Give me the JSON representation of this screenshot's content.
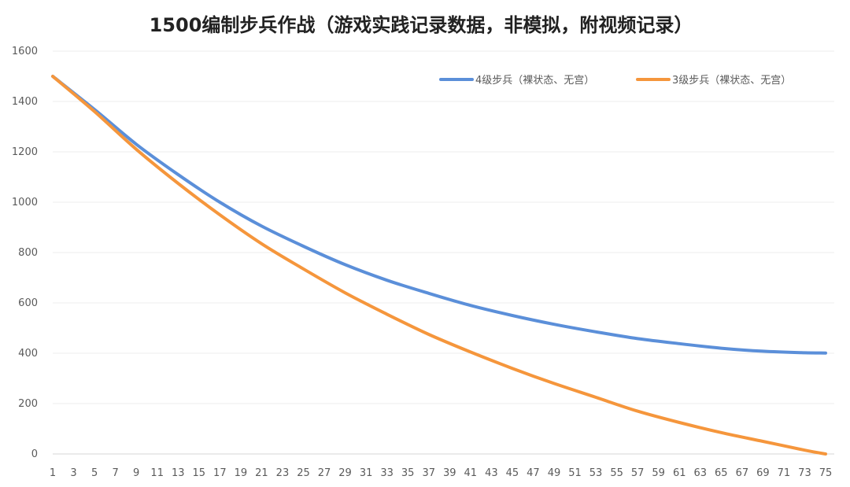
{
  "chart_data": {
    "type": "line",
    "title": "1500编制步兵作战（游戏实践记录数据，非模拟，附视频记录）",
    "xlabel": "",
    "ylabel": "",
    "ylim": [
      0,
      1600
    ],
    "y_ticks": [
      0,
      200,
      400,
      600,
      800,
      1000,
      1200,
      1400,
      1600
    ],
    "x_range": [
      1,
      75
    ],
    "x_ticks": [
      1,
      3,
      5,
      7,
      9,
      11,
      13,
      15,
      17,
      19,
      21,
      23,
      25,
      27,
      29,
      31,
      33,
      35,
      37,
      39,
      41,
      43,
      45,
      47,
      49,
      51,
      53,
      55,
      57,
      59,
      61,
      63,
      65,
      67,
      69,
      71,
      73,
      75
    ],
    "grid": true,
    "legend_position": "top-right",
    "series": [
      {
        "name": "4级步兵（裸状态、无宫）",
        "color": "#5b8fd9",
        "x": [
          1,
          5,
          9,
          13,
          17,
          21,
          25,
          29,
          33,
          37,
          41,
          45,
          49,
          53,
          57,
          61,
          65,
          69,
          73,
          75
        ],
        "values": [
          1500,
          1368,
          1230,
          1110,
          1000,
          905,
          825,
          752,
          690,
          638,
          590,
          550,
          515,
          485,
          458,
          438,
          420,
          408,
          402,
          401
        ]
      },
      {
        "name": "3级步兵（裸状态、无宫）",
        "color": "#f5963c",
        "x": [
          1,
          5,
          9,
          13,
          17,
          21,
          25,
          29,
          33,
          37,
          41,
          45,
          49,
          53,
          57,
          61,
          65,
          69,
          73,
          75
        ],
        "values": [
          1500,
          1360,
          1210,
          1075,
          950,
          835,
          735,
          640,
          555,
          475,
          405,
          340,
          280,
          225,
          170,
          125,
          85,
          50,
          15,
          0
        ]
      }
    ]
  }
}
